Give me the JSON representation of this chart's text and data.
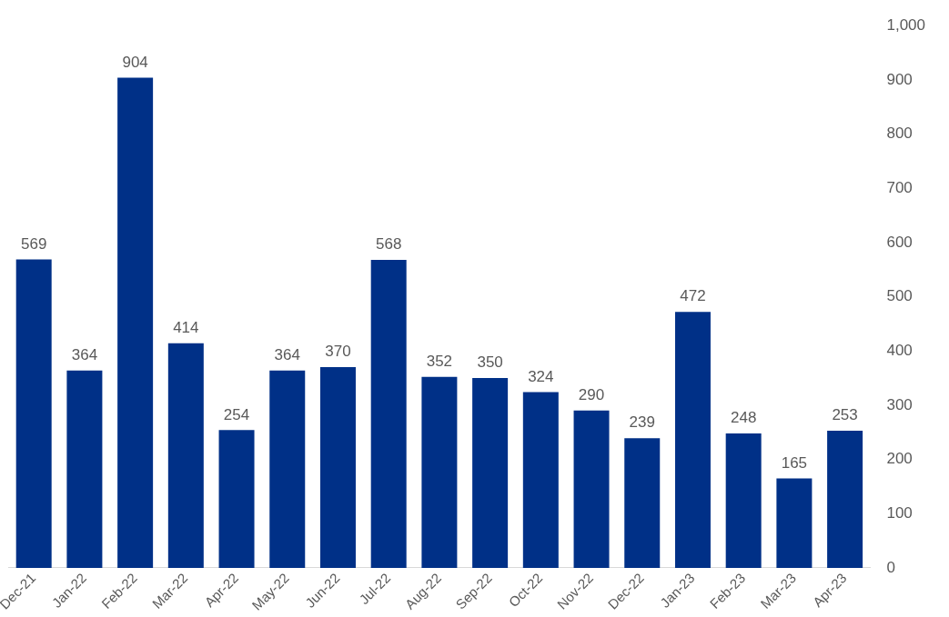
{
  "chart_data": {
    "type": "bar",
    "categories": [
      "Dec-21",
      "Jan-22",
      "Feb-22",
      "Mar-22",
      "Apr-22",
      "May-22",
      "Jun-22",
      "Jul-22",
      "Aug-22",
      "Sep-22",
      "Oct-22",
      "Nov-22",
      "Dec-22",
      "Jan-23",
      "Feb-23",
      "Mar-23",
      "Apr-23"
    ],
    "values": [
      569,
      364,
      904,
      414,
      254,
      364,
      370,
      568,
      352,
      350,
      324,
      290,
      239,
      472,
      248,
      165,
      253
    ],
    "color": "#003087",
    "ylim": [
      0,
      1000
    ],
    "yticks": [
      0,
      100,
      200,
      300,
      400,
      500,
      600,
      700,
      800,
      900,
      {
        "value": 1000,
        "label": "1,000"
      }
    ],
    "grid": false,
    "legend": false,
    "data_labels": true
  }
}
